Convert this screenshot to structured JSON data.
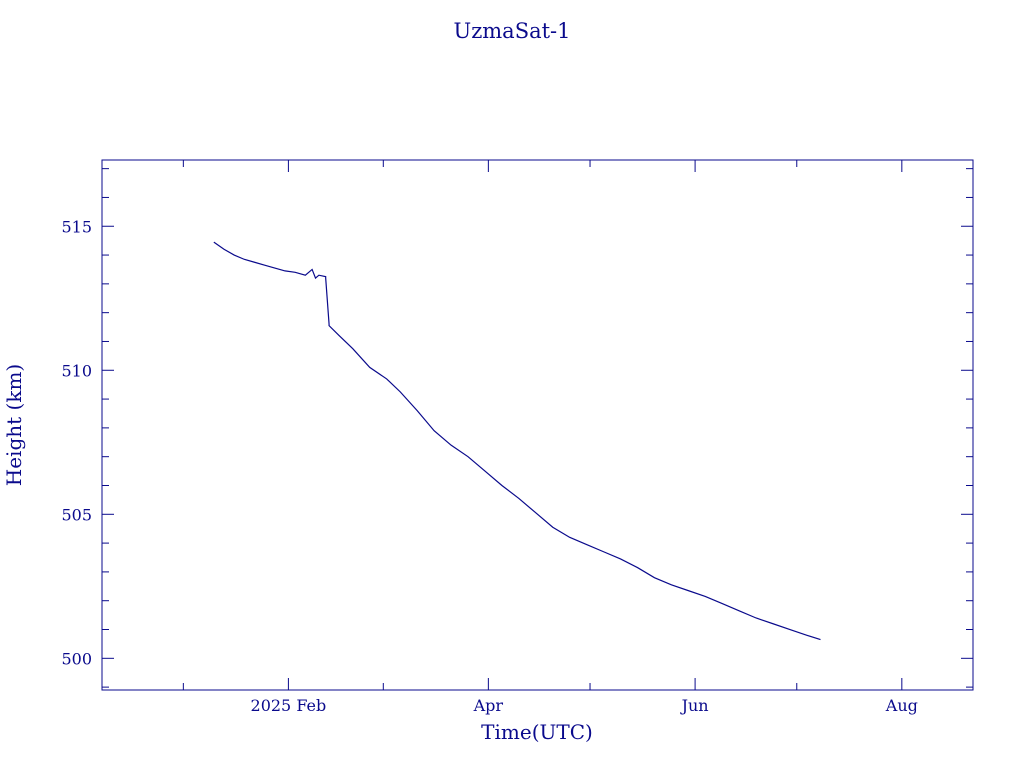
{
  "colors": {
    "ink": "#0a0a8c",
    "background": "#ffffff"
  },
  "chart_data": {
    "type": "line",
    "title": "UzmaSat-1",
    "xlabel": "Time(UTC)",
    "ylabel": "Height (km)",
    "x_tick_labels": [
      "2025 Feb",
      "Apr",
      "Jun",
      "Aug"
    ],
    "x_tick_dates": [
      "2025-02-01",
      "2025-04-01",
      "2025-06-01",
      "2025-08-01"
    ],
    "y_tick_labels": [
      "500",
      "505",
      "510",
      "515"
    ],
    "xlim": [
      "2024-12-08",
      "2025-08-22"
    ],
    "ylim": [
      498.9,
      517.3
    ],
    "grid": false,
    "legend": "none",
    "series": [
      {
        "x": [
          "2025-01-10",
          "2025-01-13",
          "2025-01-16",
          "2025-01-19",
          "2025-01-22",
          "2025-01-25",
          "2025-01-28",
          "2025-01-31",
          "2025-02-03",
          "2025-02-06",
          "2025-02-08",
          "2025-02-09",
          "2025-02-10",
          "2025-02-12",
          "2025-02-12",
          "2025-02-13",
          "2025-02-13",
          "2025-02-16",
          "2025-02-20",
          "2025-02-25",
          "2025-03-02",
          "2025-03-06",
          "2025-03-11",
          "2025-03-16",
          "2025-03-21",
          "2025-03-26",
          "2025-03-31",
          "2025-04-05",
          "2025-04-10",
          "2025-04-15",
          "2025-04-20",
          "2025-04-25",
          "2025-04-30",
          "2025-05-05",
          "2025-05-10",
          "2025-05-15",
          "2025-05-20",
          "2025-05-25",
          "2025-05-30",
          "2025-06-04",
          "2025-06-09",
          "2025-06-14",
          "2025-06-19",
          "2025-06-24",
          "2025-06-29",
          "2025-07-04",
          "2025-07-08"
        ],
        "y": [
          514.45,
          514.2,
          514.0,
          513.85,
          513.75,
          513.65,
          513.55,
          513.45,
          513.4,
          513.3,
          513.5,
          513.2,
          513.3,
          513.25,
          513.2,
          511.6,
          511.55,
          511.2,
          510.75,
          510.1,
          509.7,
          509.25,
          508.6,
          507.9,
          507.4,
          507.0,
          506.5,
          506.0,
          505.55,
          505.05,
          504.55,
          504.2,
          503.95,
          503.7,
          503.45,
          503.15,
          502.8,
          502.55,
          502.35,
          502.15,
          501.9,
          501.65,
          501.4,
          501.2,
          501.0,
          500.8,
          500.65
        ]
      }
    ]
  }
}
